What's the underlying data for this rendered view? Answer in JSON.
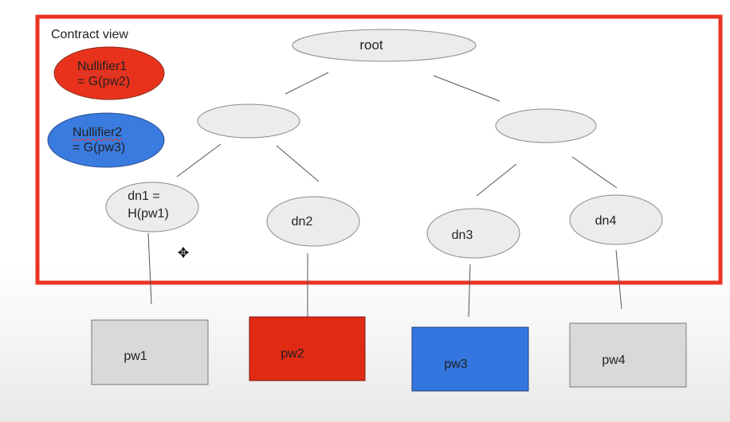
{
  "view_label": "Contract view",
  "nullifiers": [
    {
      "name": "Nullifier1",
      "formula": "= G(pw2)",
      "color": "#e8321c"
    },
    {
      "name": "Nullifier2",
      "formula": "= G(pw3)",
      "color": "#3a7be0"
    }
  ],
  "tree": {
    "root_label": "root",
    "leaves": [
      {
        "line1": "dn1 =",
        "line2": "H(pw1)"
      },
      {
        "line1": "dn2",
        "line2": ""
      },
      {
        "line1": "dn3",
        "line2": ""
      },
      {
        "line1": "dn4",
        "line2": ""
      }
    ]
  },
  "passwords": [
    {
      "label": "pw1",
      "color": "#d9d9d9"
    },
    {
      "label": "pw2",
      "color": "#e02a14"
    },
    {
      "label": "pw3",
      "color": "#3476e0"
    },
    {
      "label": "pw4",
      "color": "#d9d9d9"
    }
  ],
  "colors": {
    "frame": "#ea3323",
    "node_fill": "#ececec",
    "node_stroke": "#8a8a8a",
    "line": "#555555"
  }
}
